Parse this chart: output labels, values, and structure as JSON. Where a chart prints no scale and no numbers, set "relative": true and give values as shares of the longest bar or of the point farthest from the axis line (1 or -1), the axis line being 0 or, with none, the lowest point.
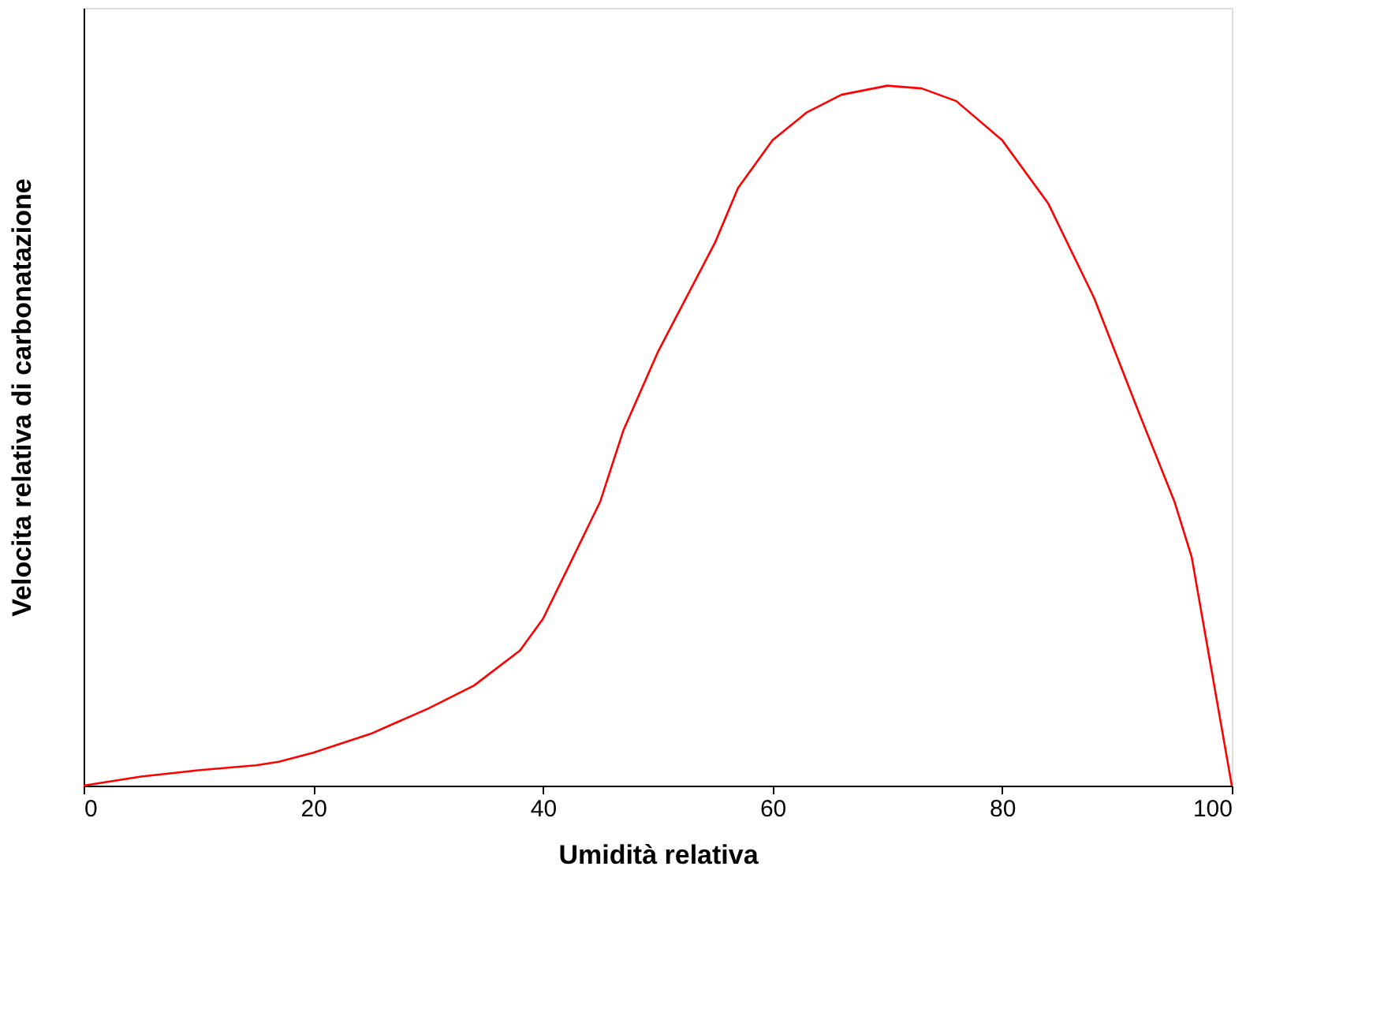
{
  "chart_data": {
    "type": "line",
    "xlabel": "Umidità relativa",
    "ylabel": "Velocita relativa di carbonatazione",
    "relative": true,
    "xlim": [
      0,
      100
    ],
    "xticks": [
      0,
      20,
      40,
      60,
      80,
      100
    ],
    "grid": false,
    "marker": "none",
    "line_style": "solid",
    "x": [
      0,
      5,
      10,
      15,
      17,
      20,
      25,
      30,
      34,
      38,
      40,
      42,
      45,
      47,
      50,
      55,
      57,
      60,
      63,
      66,
      70,
      73,
      76,
      80,
      84,
      88,
      92,
      95,
      96.5,
      100
    ],
    "series": [
      {
        "color": "#ff0000",
        "values": [
          0,
          0.013,
          0.022,
          0.029,
          0.034,
          0.047,
          0.074,
          0.11,
          0.143,
          0.193,
          0.238,
          0.305,
          0.406,
          0.507,
          0.619,
          0.776,
          0.854,
          0.922,
          0.962,
          0.987,
          1,
          0.996,
          0.978,
          0.922,
          0.832,
          0.697,
          0.529,
          0.406,
          0.327,
          0
        ]
      }
    ]
  }
}
